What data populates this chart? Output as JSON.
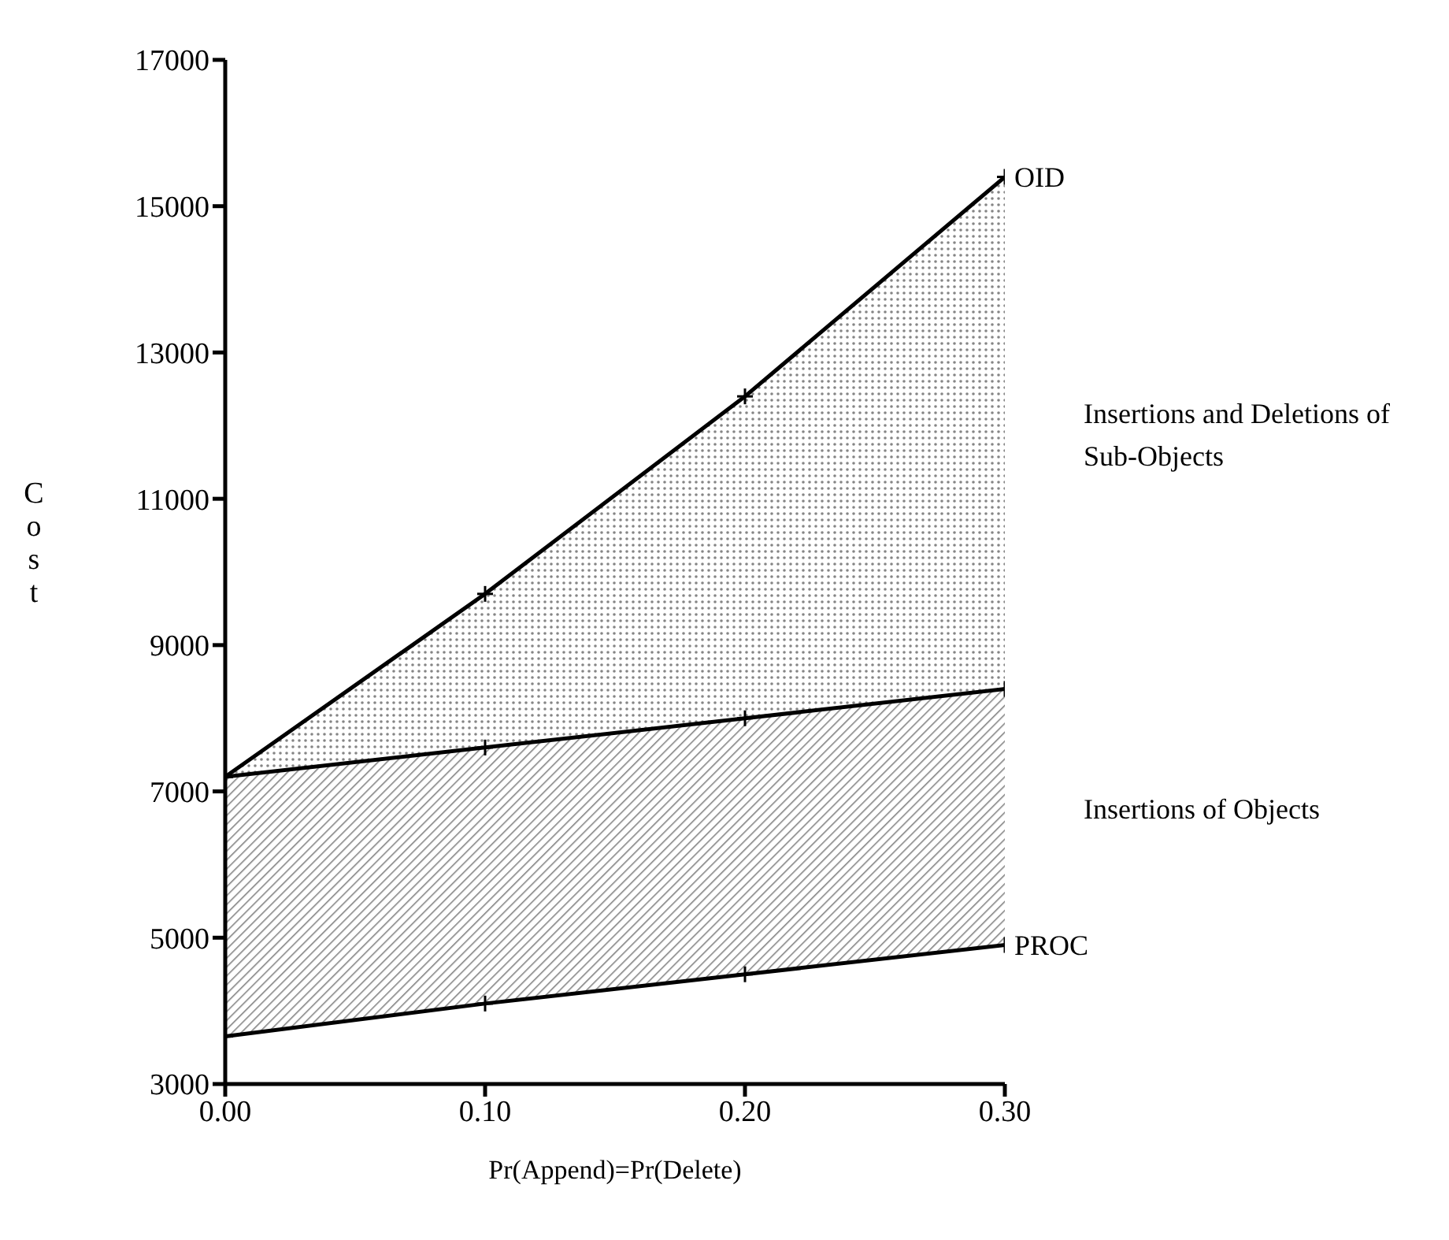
{
  "chart_data": {
    "type": "line",
    "xlabel": "Pr(Append)=Pr(Delete)",
    "ylabel": "Cost",
    "x": [
      0,
      0.1,
      0.2,
      0.3
    ],
    "series": [
      {
        "name": "OID",
        "type": "area",
        "color": "#000000",
        "values": [
          7200,
          9700,
          12400,
          15400
        ]
      },
      {
        "type": "area",
        "color": "#000000",
        "values": [
          7200,
          7600,
          8000,
          8400
        ]
      },
      {
        "name": "PROC",
        "type": "line",
        "color": "#000000",
        "values": [
          3650,
          4100,
          4500,
          4900
        ]
      }
    ],
    "xlim": [
      0,
      0.3
    ],
    "xticks": [
      {
        "value": 0,
        "label": "0.00"
      },
      {
        "value": 0.1,
        "label": "0.10"
      },
      {
        "value": 0.2,
        "label": "0.20"
      },
      {
        "value": 0.3,
        "label": "0.30"
      }
    ],
    "ylim": [
      3000,
      17000
    ],
    "yticks": [
      3000,
      5000,
      7000,
      9000,
      11000,
      13000,
      15000,
      17000
    ],
    "marker": "cross",
    "grid": false,
    "annotations": [
      "Insertions and Deletions of Sub-Objects",
      "Insertions of Objects"
    ]
  }
}
